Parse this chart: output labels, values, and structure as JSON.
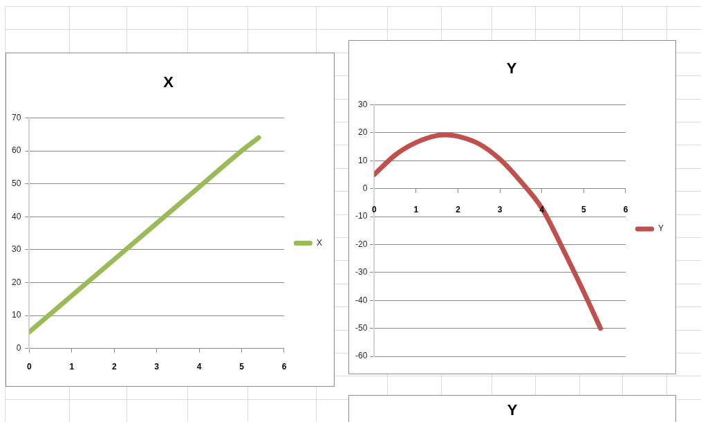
{
  "chart_data": [
    {
      "type": "line",
      "title": "X",
      "x": [
        0,
        1,
        2,
        3,
        4,
        5,
        5.4
      ],
      "series": [
        {
          "name": "X",
          "color": "#9bbb59",
          "values": [
            5,
            16,
            27,
            38,
            49,
            60,
            64
          ]
        }
      ],
      "xlim": [
        0,
        6
      ],
      "xticks": [
        0,
        1,
        2,
        3,
        4,
        5,
        6
      ],
      "ylim": [
        0,
        70
      ],
      "yticks": [
        0,
        10,
        20,
        30,
        40,
        50,
        60,
        70
      ],
      "grid": "y",
      "legend": "right"
    },
    {
      "type": "line",
      "title": "Y",
      "x": [
        0,
        0.5,
        1,
        1.5,
        1.7,
        2,
        2.5,
        3,
        3.5,
        4,
        4.5,
        5,
        5.4
      ],
      "series": [
        {
          "name": "Y",
          "color": "#c0504d",
          "values": [
            5,
            12,
            16.5,
            19,
            19.2,
            18.7,
            16,
            10.5,
            2.5,
            -7,
            -21.5,
            -37,
            -50
          ]
        }
      ],
      "xlim": [
        0,
        6
      ],
      "xticks": [
        0,
        1,
        2,
        3,
        4,
        5,
        6
      ],
      "ylim": [
        -60,
        30
      ],
      "yticks": [
        -60,
        -50,
        -40,
        -30,
        -20,
        -10,
        0,
        10,
        20,
        30
      ],
      "grid": "y",
      "legend": "right"
    },
    {
      "type": "other",
      "title": "Y"
    }
  ]
}
